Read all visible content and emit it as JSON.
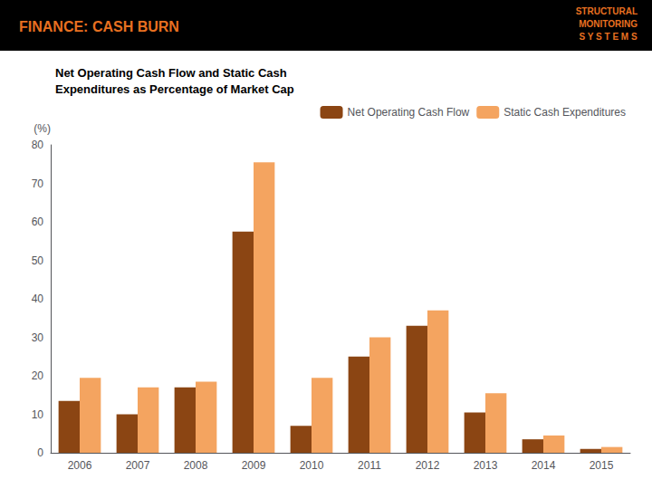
{
  "chart_data": {
    "type": "bar",
    "title": "FINANCE: CASH BURN",
    "subtitle": [
      "Net Operating Cash Flow and Static Cash",
      "Expenditures as Percentage of Market Cap"
    ],
    "ylabel": "(%)",
    "annotations": [
      "STRUCTURAL",
      "MONITORING",
      "S Y S T E M S"
    ],
    "categories": [
      "2006",
      "2007",
      "2008",
      "2009",
      "2010",
      "2011",
      "2012",
      "2013",
      "2014",
      "2015"
    ],
    "series": [
      {
        "name": "Net Operating Cash Flow",
        "color": "#8B4513",
        "values": [
          13.5,
          10.0,
          17.0,
          57.5,
          7.0,
          25.0,
          33.0,
          10.5,
          3.5,
          1.0
        ]
      },
      {
        "name": "Static Cash Expenditures",
        "color": "#F4A460",
        "values": [
          19.5,
          17.0,
          18.5,
          75.5,
          19.5,
          30.0,
          37.0,
          15.5,
          4.5,
          1.5
        ]
      }
    ],
    "ylim": [
      0,
      80
    ],
    "yticks": [
      0,
      10,
      20,
      30,
      40,
      50,
      60,
      70,
      80
    ],
    "grid": false,
    "legend": "upper right"
  }
}
